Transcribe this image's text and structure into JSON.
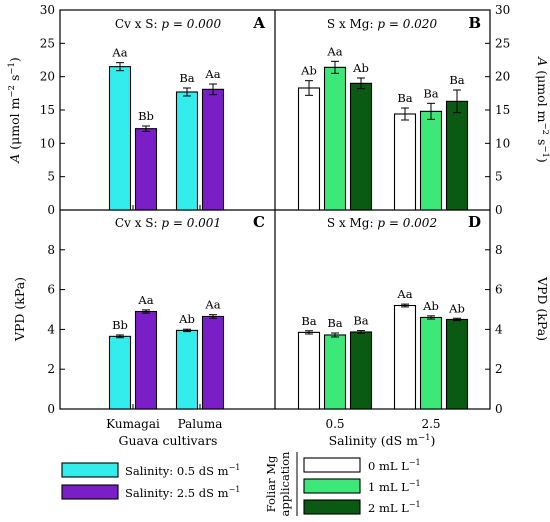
{
  "chart_data": [
    {
      "id": "A",
      "type": "bar",
      "panel_label": "A",
      "title_prefix": "Cv x S: ",
      "title_p": "p = 0.000",
      "ylabel": "A (µmol m⁻² s⁻¹)",
      "ylim": [
        0,
        30
      ],
      "yticks": [
        "0",
        "5",
        "10",
        "15",
        "20",
        "25",
        "30"
      ],
      "categories": [
        "Kumagai",
        "Paluma"
      ],
      "series": [
        {
          "name": "Salinity: 0.5 dS m⁻¹",
          "values": [
            21.5,
            17.7
          ],
          "errors": [
            0.6,
            0.6
          ],
          "letters": [
            "Aa",
            "Ba"
          ]
        },
        {
          "name": "Salinity: 2.5 dS m⁻¹",
          "values": [
            12.2,
            18.1
          ],
          "errors": [
            0.4,
            0.8
          ],
          "letters": [
            "Bb",
            "Aa"
          ]
        }
      ]
    },
    {
      "id": "B",
      "type": "bar",
      "panel_label": "B",
      "title_prefix": "S x Mg: ",
      "title_p": "p = 0.020",
      "ylabel": "A (µmol m⁻² s⁻¹)",
      "ylim": [
        0,
        30
      ],
      "yticks": [
        "0",
        "5",
        "10",
        "15",
        "20",
        "25",
        "30"
      ],
      "categories": [
        "0.5",
        "2.5"
      ],
      "series": [
        {
          "name": "0 mL L⁻¹",
          "values": [
            18.3,
            14.4
          ],
          "errors": [
            1.1,
            0.9
          ],
          "letters": [
            "Ab",
            "Ba"
          ]
        },
        {
          "name": "1 mL L⁻¹",
          "values": [
            21.4,
            14.8
          ],
          "errors": [
            0.9,
            1.2
          ],
          "letters": [
            "Aa",
            "Ba"
          ]
        },
        {
          "name": "2 mL L⁻¹",
          "values": [
            19.0,
            16.3
          ],
          "errors": [
            0.8,
            1.7
          ],
          "letters": [
            "Ab",
            "Ba"
          ]
        }
      ]
    },
    {
      "id": "C",
      "type": "bar",
      "panel_label": "C",
      "title_prefix": "Cv x S: ",
      "title_p": "p = 0.001",
      "ylabel": "VPD (kPa)",
      "ylim": [
        0,
        10
      ],
      "yticks": [
        "0",
        "2",
        "4",
        "6",
        "8"
      ],
      "xlabel": "Guava cultivars",
      "categories": [
        "Kumagai",
        "Paluma"
      ],
      "series": [
        {
          "name": "Salinity: 0.5 dS m⁻¹",
          "values": [
            3.65,
            3.95
          ],
          "errors": [
            0.07,
            0.06
          ],
          "letters": [
            "Bb",
            "Ab"
          ]
        },
        {
          "name": "Salinity: 2.5 dS m⁻¹",
          "values": [
            4.9,
            4.65
          ],
          "errors": [
            0.08,
            0.09
          ],
          "letters": [
            "Aa",
            "Aa"
          ]
        }
      ]
    },
    {
      "id": "D",
      "type": "bar",
      "panel_label": "D",
      "title_prefix": "S x Mg: ",
      "title_p": "p = 0.002",
      "ylabel": "VPD (kPa)",
      "ylim": [
        0,
        10
      ],
      "yticks": [
        "0",
        "2",
        "4",
        "6",
        "8"
      ],
      "xlabel": "Salinity (dS m⁻¹)",
      "categories": [
        "0.5",
        "2.5"
      ],
      "series": [
        {
          "name": "0 mL L⁻¹",
          "values": [
            3.85,
            5.2
          ],
          "errors": [
            0.08,
            0.07
          ],
          "letters": [
            "Ba",
            "Aa"
          ]
        },
        {
          "name": "1 mL L⁻¹",
          "values": [
            3.72,
            4.6
          ],
          "errors": [
            0.1,
            0.08
          ],
          "letters": [
            "Ba",
            "Ab"
          ]
        },
        {
          "name": "2 mL L⁻¹",
          "values": [
            3.87,
            4.5
          ],
          "errors": [
            0.07,
            0.06
          ],
          "letters": [
            "Ba",
            "Ab"
          ]
        }
      ]
    }
  ],
  "legend_cultivar": {
    "items": [
      {
        "label": "Salinity: 0.5 dS m⁻¹",
        "color": "#33ecec"
      },
      {
        "label": "Salinity: 2.5 dS m⁻¹",
        "color": "#7a1ec8"
      }
    ]
  },
  "legend_mg": {
    "title_line1": "Foliar Mg",
    "title_line2": "application",
    "items": [
      {
        "label": "0 mL L⁻¹",
        "color": "#ffffff"
      },
      {
        "label": "1 mL L⁻¹",
        "color": "#3ce878"
      },
      {
        "label": "2 mL L⁻¹",
        "color": "#0a5a14"
      }
    ]
  },
  "colors": {
    "cv_low": "#33ecec",
    "cv_high": "#7a1ec8",
    "mg_0": "#ffffff",
    "mg_1": "#3ce878",
    "mg_2": "#0a5a14"
  }
}
